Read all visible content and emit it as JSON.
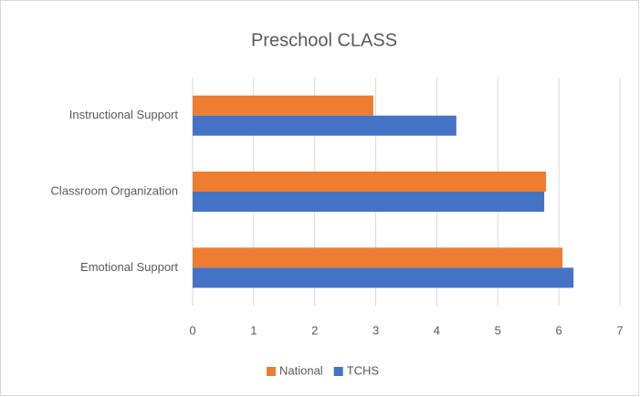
{
  "chart_data": {
    "type": "hbar",
    "title": "Preschool CLASS",
    "categories": [
      "Emotional Support",
      "Classroom Organization",
      "Instructional Support"
    ],
    "series": [
      {
        "name": "National",
        "color": "#ed7d31",
        "values": [
          6.06,
          5.79,
          2.96
        ]
      },
      {
        "name": "TCHS",
        "color": "#4472c4",
        "values": [
          6.24,
          5.76,
          4.32
        ]
      }
    ],
    "xlim": [
      0,
      7
    ],
    "xticks": [
      0,
      1,
      2,
      3,
      4,
      5,
      6,
      7
    ],
    "grid": true,
    "legend": "bottom"
  }
}
